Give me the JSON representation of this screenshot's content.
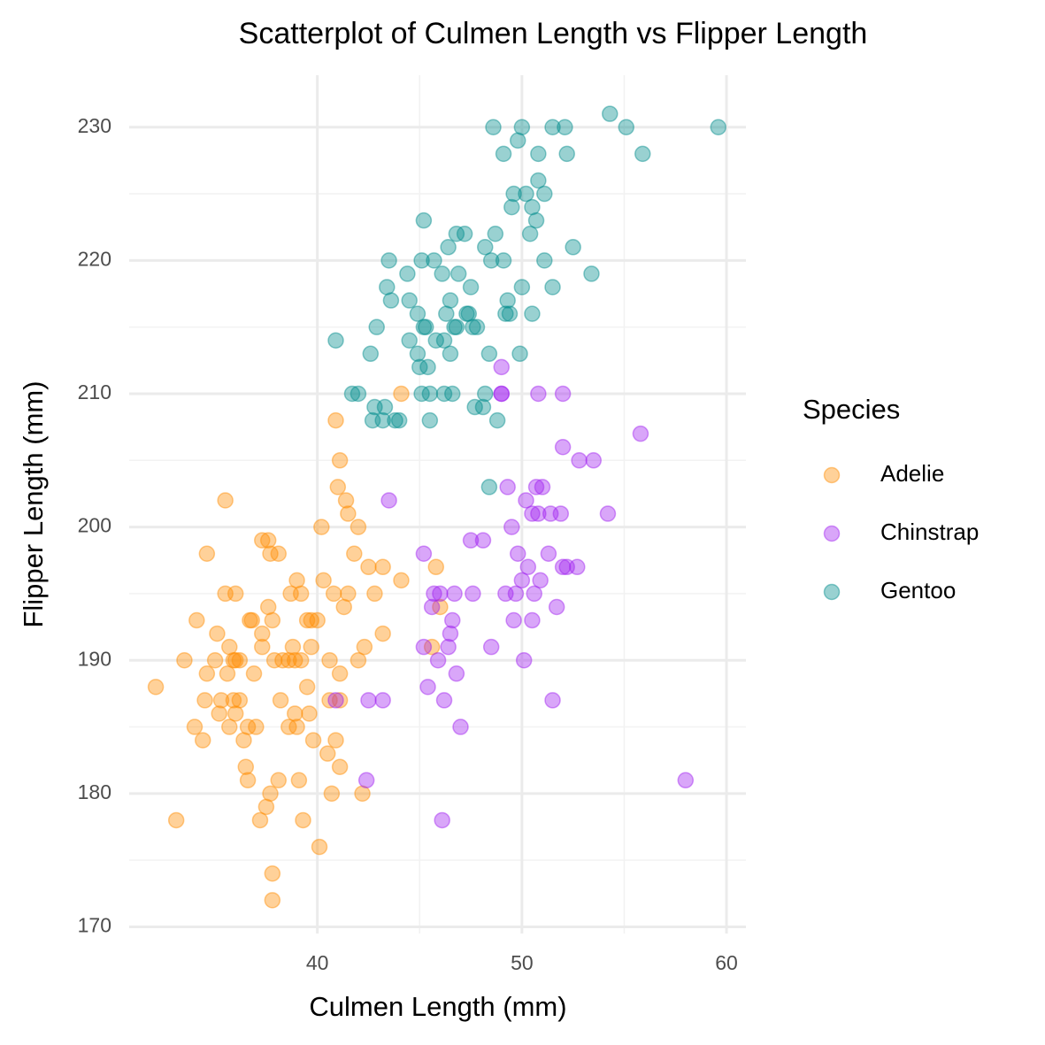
{
  "chart_data": {
    "type": "scatter",
    "title": "Scatterplot of Culmen Length vs Flipper Length",
    "x_label": "Culmen Length (mm)",
    "y_label": "Flipper Length (mm)",
    "legend_title": "Species",
    "legend_position": "right",
    "grid": true,
    "xlim": [
      30.8,
      60.95
    ],
    "ylim": [
      169.5,
      233.9
    ],
    "xticks": [
      40,
      50,
      60
    ],
    "yticks": [
      170,
      180,
      190,
      200,
      210,
      220,
      230
    ],
    "series": [
      {
        "name": "Adelie",
        "color": "#FF8C00",
        "x": [
          32.1,
          33.1,
          33.5,
          34.0,
          34.1,
          34.4,
          34.5,
          34.6,
          34.6,
          35.0,
          35.1,
          35.2,
          35.3,
          35.5,
          35.7,
          35.9,
          35.5,
          35.6,
          35.7,
          35.9,
          36.0,
          36.0,
          36.2,
          36.2,
          36.4,
          36.5,
          36.6,
          36.7,
          36.8,
          36.9,
          37.0,
          37.2,
          37.3,
          37.3,
          37.3,
          37.6,
          37.5,
          37.6,
          37.7,
          37.7,
          37.8,
          37.8,
          37.8,
          37.9,
          38.1,
          38.1,
          38.2,
          38.3,
          38.6,
          38.6,
          38.7,
          38.8,
          38.9,
          39.0,
          39.0,
          39.1,
          39.2,
          39.2,
          39.3,
          39.5,
          39.6,
          39.7,
          39.8,
          40.1,
          40.2,
          40.3,
          40.5,
          40.6,
          40.6,
          40.7,
          40.8,
          41.0,
          40.9,
          41.1,
          41.1,
          41.1,
          41.3,
          41.1,
          40.9,
          41.4,
          41.5,
          41.5,
          41.8,
          42.0,
          42.0,
          42.2,
          42.3,
          42.5,
          42.8,
          43.2,
          43.2,
          44.1,
          44.1,
          45.6,
          45.8,
          46.0,
          39.5,
          38.9,
          39.7,
          40.0,
          36.6,
          36.0
        ],
        "y": [
          188,
          178,
          190,
          185,
          193,
          184,
          187,
          198,
          189,
          190,
          192,
          186,
          187,
          195,
          191,
          190,
          202,
          189,
          185,
          187,
          195,
          186,
          187,
          190,
          184,
          182,
          181,
          193,
          193,
          189,
          185,
          178,
          192,
          191,
          199,
          199,
          179,
          194,
          180,
          198,
          174,
          172,
          193,
          190,
          181,
          198,
          187,
          190,
          185,
          190,
          195,
          191,
          190,
          185,
          196,
          181,
          190,
          195,
          178,
          188,
          186,
          191,
          184,
          176,
          200,
          196,
          183,
          187,
          190,
          180,
          195,
          203,
          184,
          189,
          187,
          182,
          194,
          205,
          208,
          202,
          201,
          195,
          198,
          190,
          200,
          180,
          191,
          197,
          195,
          192,
          197,
          196,
          210,
          191,
          197,
          194,
          193,
          186,
          193,
          193,
          185,
          190
        ]
      },
      {
        "name": "Chinstrap",
        "color": "#A020F0",
        "x": [
          40.9,
          42.4,
          42.5,
          43.2,
          43.5,
          45.2,
          45.2,
          45.4,
          45.6,
          45.7,
          45.9,
          46.0,
          46.1,
          46.2,
          46.4,
          46.5,
          46.6,
          46.7,
          46.8,
          47.0,
          47.5,
          47.6,
          48.1,
          48.5,
          49.0,
          49.0,
          49.2,
          49.3,
          49.5,
          49.6,
          49.7,
          49.8,
          50.0,
          50.1,
          50.2,
          50.3,
          50.5,
          50.5,
          50.6,
          50.7,
          50.8,
          50.9,
          51.0,
          51.3,
          51.4,
          51.5,
          51.7,
          51.9,
          52.0,
          52.0,
          52.2,
          52.7,
          52.8,
          53.5,
          54.2,
          55.8,
          58.0,
          50.8,
          52.0,
          49.0
        ],
        "y": [
          187,
          181,
          187,
          187,
          202,
          198,
          191,
          188,
          194,
          195,
          190,
          195,
          178,
          187,
          191,
          192,
          193,
          195,
          189,
          185,
          199,
          195,
          199,
          191,
          210,
          212,
          195,
          203,
          200,
          193,
          195,
          198,
          196,
          190,
          202,
          197,
          201,
          193,
          195,
          203,
          201,
          196,
          203,
          198,
          201,
          187,
          194,
          201,
          197,
          206,
          197,
          197,
          205,
          205,
          201,
          207,
          181,
          210,
          210,
          210
        ]
      },
      {
        "name": "Gentoo",
        "color": "#008B8B",
        "x": [
          40.9,
          41.7,
          42.0,
          42.6,
          42.7,
          42.8,
          42.9,
          43.2,
          43.3,
          43.4,
          43.5,
          43.6,
          43.8,
          44.0,
          44.4,
          44.5,
          44.5,
          44.9,
          45.0,
          45.1,
          45.1,
          45.2,
          45.3,
          45.4,
          45.5,
          45.5,
          45.7,
          45.8,
          46.1,
          46.2,
          46.3,
          46.4,
          46.5,
          46.5,
          46.6,
          46.8,
          46.8,
          46.9,
          47.2,
          47.3,
          47.5,
          47.6,
          47.7,
          47.8,
          48.1,
          48.2,
          48.2,
          48.4,
          48.4,
          48.5,
          48.6,
          48.7,
          48.8,
          49.1,
          49.2,
          49.3,
          49.4,
          49.5,
          49.6,
          49.8,
          50.0,
          49.9,
          50.0,
          50.2,
          50.4,
          50.5,
          50.5,
          50.7,
          50.8,
          50.8,
          51.1,
          51.1,
          51.5,
          51.5,
          52.1,
          52.2,
          52.5,
          53.4,
          54.3,
          55.1,
          55.9,
          59.6,
          49.1,
          46.2,
          44.9,
          45.2,
          46.7,
          47.4
        ],
        "y": [
          214,
          210,
          210,
          213,
          208,
          209,
          215,
          208,
          209,
          218,
          220,
          217,
          208,
          208,
          219,
          217,
          214,
          213,
          212,
          220,
          210,
          223,
          215,
          212,
          210,
          208,
          220,
          214,
          219,
          214,
          216,
          221,
          213,
          217,
          210,
          215,
          222,
          219,
          222,
          216,
          218,
          215,
          209,
          215,
          209,
          210,
          221,
          213,
          203,
          220,
          230,
          222,
          208,
          220,
          216,
          217,
          216,
          224,
          225,
          229,
          230,
          213,
          218,
          225,
          222,
          216,
          224,
          223,
          228,
          226,
          220,
          225,
          218,
          230,
          230,
          228,
          221,
          219,
          231,
          230,
          228,
          230,
          228,
          210,
          216,
          215,
          215,
          216
        ]
      }
    ]
  }
}
